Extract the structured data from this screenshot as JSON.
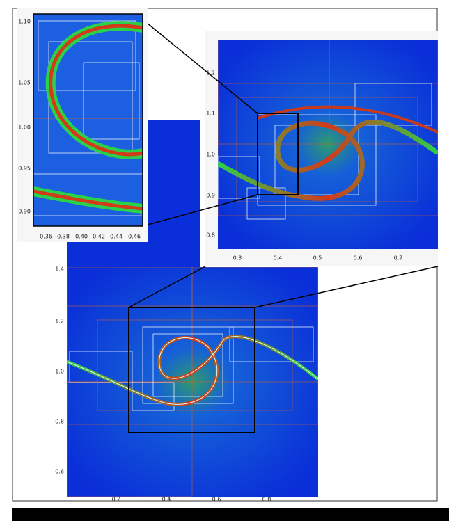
{
  "panels": [
    {
      "yticks": [
        "1.10",
        "1.05",
        "1.00",
        "0.95",
        "0.90"
      ],
      "xticks": [
        "0.36",
        "0.38",
        "0.40",
        "0.42",
        "0.44",
        "0.46"
      ]
    },
    {
      "yticks": [
        "1.2",
        "1.1",
        "1.0",
        "0.9",
        "0.8"
      ],
      "xticks": [
        "0.3",
        "0.4",
        "0.5",
        "0.6",
        "0.7"
      ]
    },
    {
      "yticks": [
        "1.4",
        "1.2",
        "1.0",
        "0.8",
        "0.6"
      ],
      "xticks": [
        "0.2",
        "0.4",
        "0.6",
        "0.8"
      ]
    }
  ]
}
